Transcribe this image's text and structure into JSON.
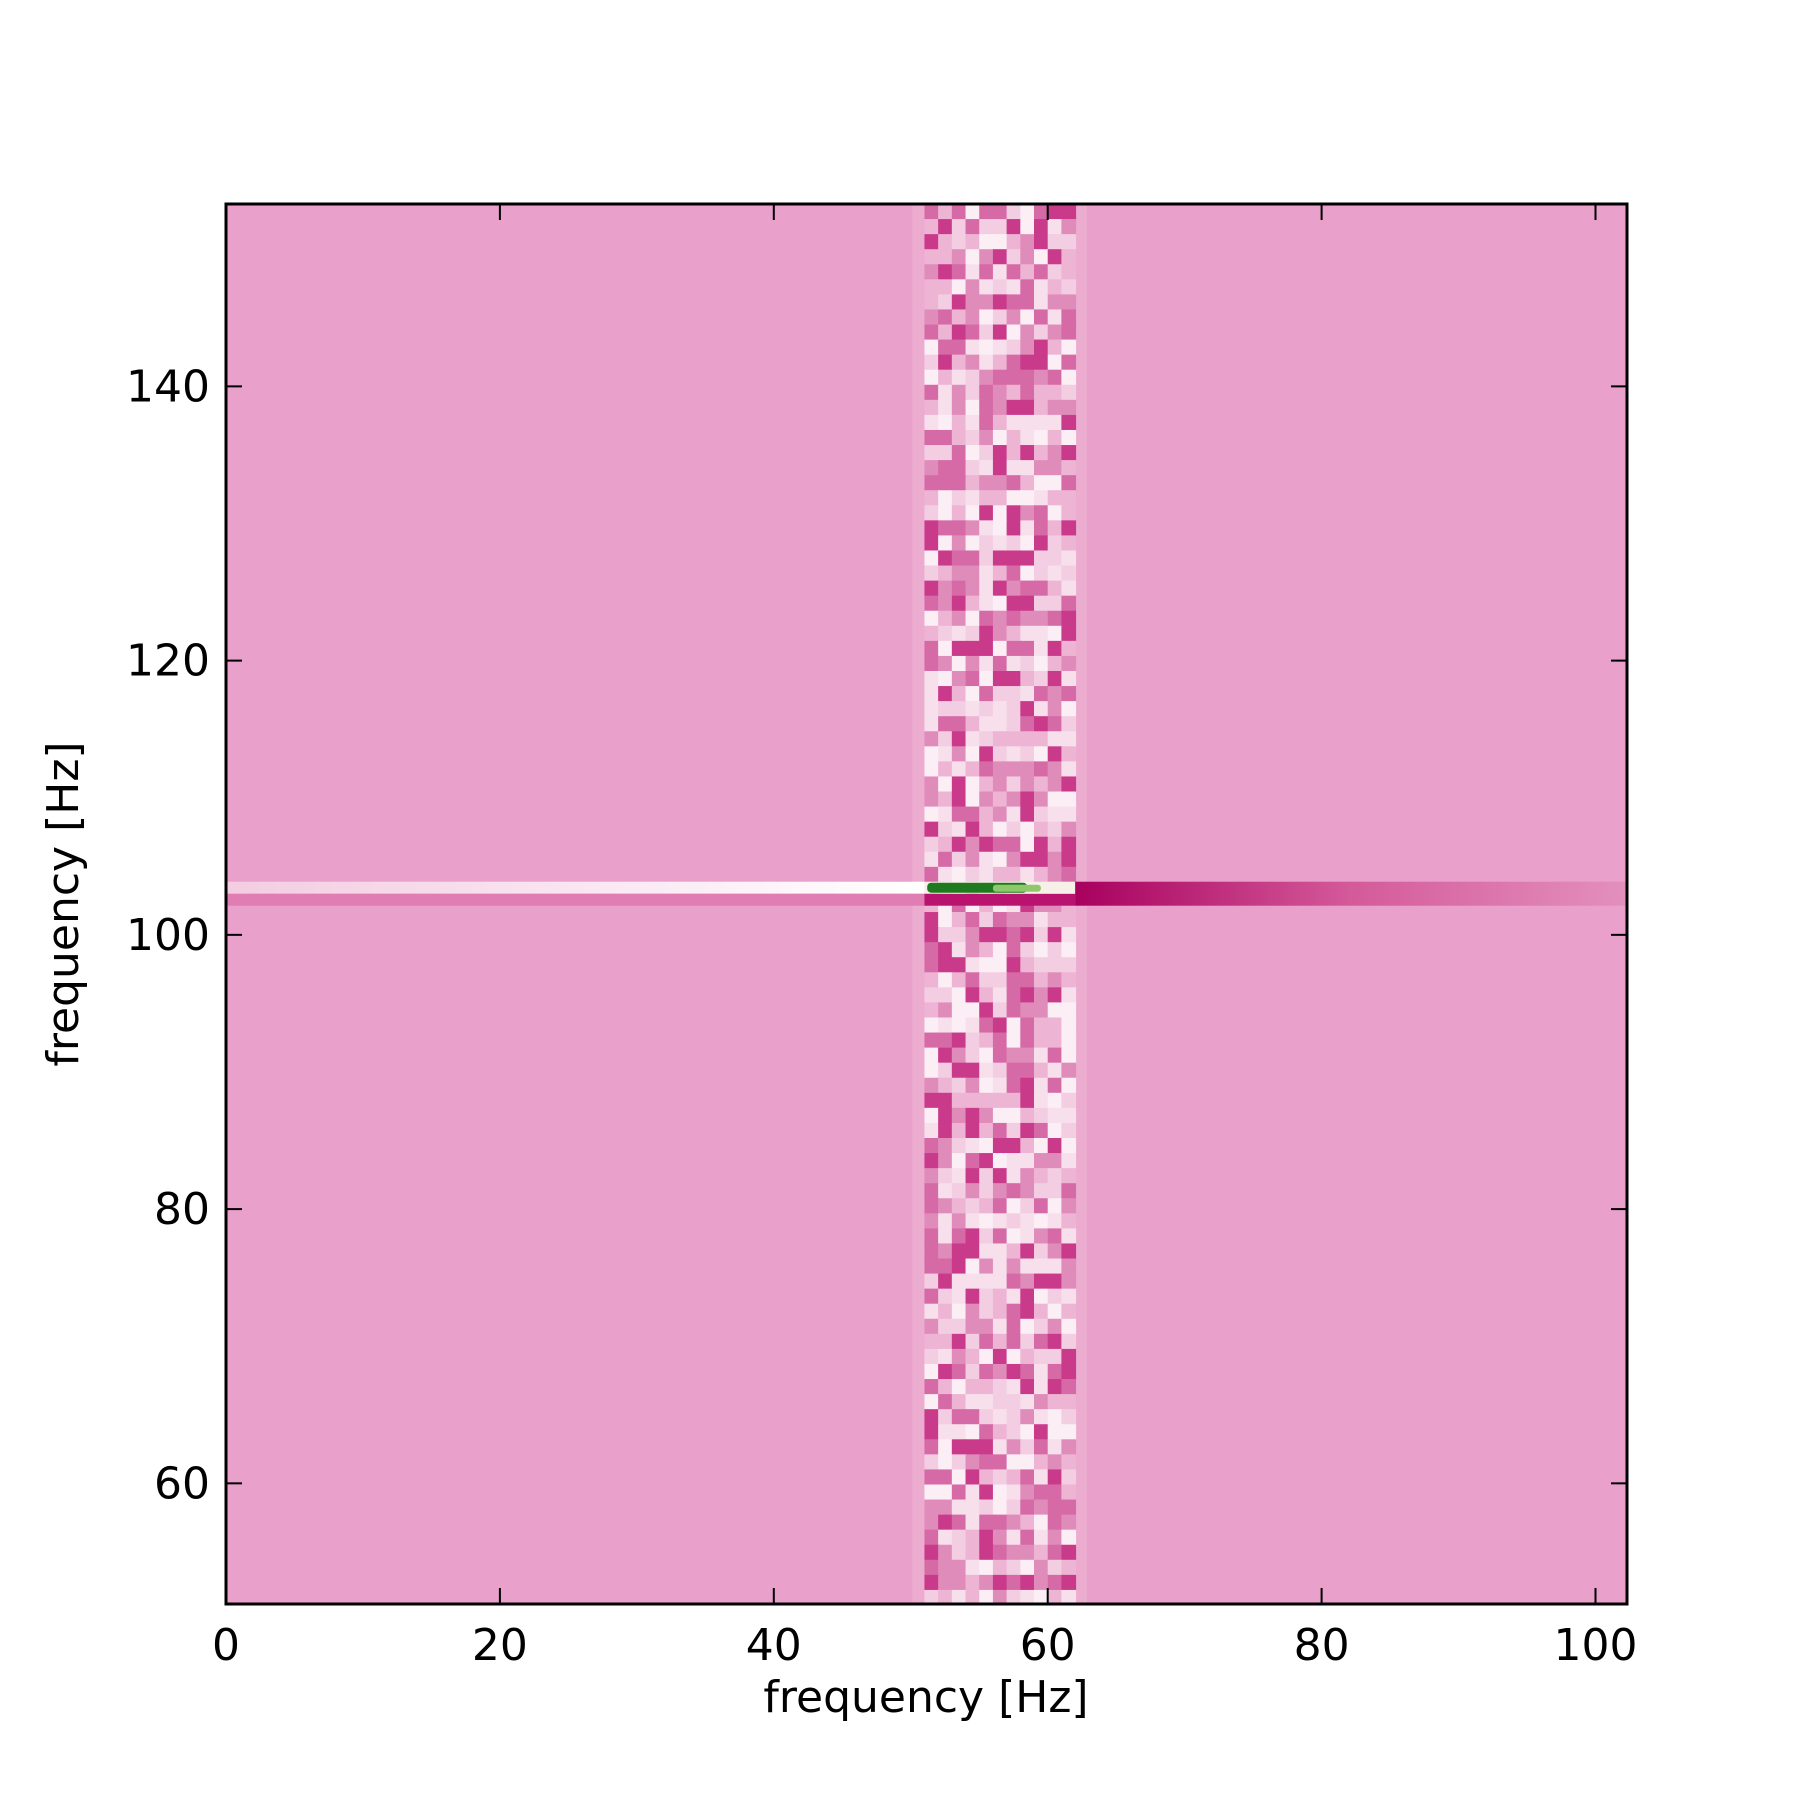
{
  "chart_data": {
    "type": "heatmap",
    "xlabel": "frequency [Hz]",
    "ylabel": "frequency [Hz]",
    "xlim": [
      0,
      102.3
    ],
    "ylim": [
      51.2,
      153.3
    ],
    "xticks": [
      0,
      20,
      40,
      60,
      80,
      100
    ],
    "yticks": [
      60,
      80,
      100,
      120,
      140
    ],
    "color": "#e9a0ca"
  }
}
